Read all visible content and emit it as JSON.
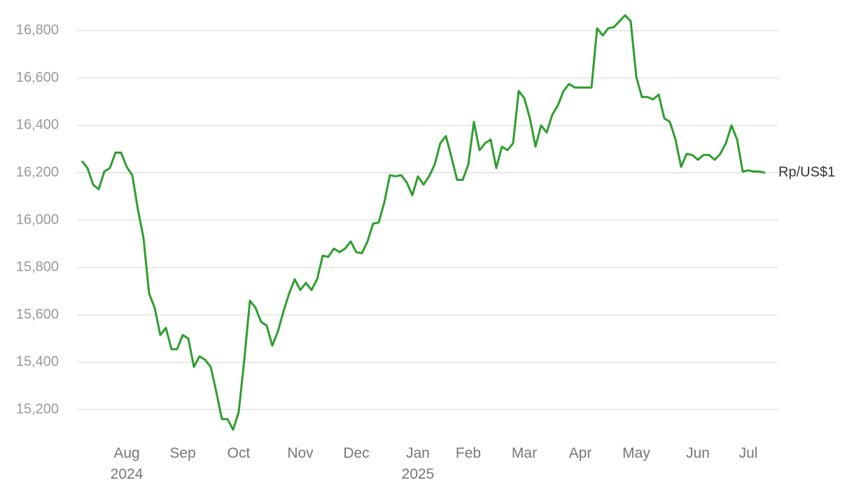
{
  "chart_data": {
    "type": "line",
    "categories": [
      null,
      null,
      null,
      null,
      null,
      null,
      null,
      null,
      "Aug 2024",
      null,
      null,
      null,
      null,
      null,
      null,
      null,
      null,
      null,
      "Sep",
      null,
      null,
      null,
      null,
      null,
      null,
      null,
      null,
      null,
      "Oct",
      null,
      null,
      null,
      null,
      null,
      null,
      null,
      null,
      null,
      null,
      "Nov",
      null,
      null,
      null,
      null,
      null,
      null,
      null,
      null,
      null,
      "Dec",
      null,
      null,
      null,
      null,
      null,
      null,
      null,
      null,
      null,
      null,
      "Jan 2025",
      null,
      null,
      null,
      null,
      null,
      null,
      null,
      null,
      "Feb",
      null,
      null,
      null,
      null,
      null,
      null,
      null,
      null,
      null,
      "Mar",
      null,
      null,
      null,
      null,
      null,
      null,
      null,
      null,
      null,
      "Apr",
      null,
      null,
      null,
      null,
      null,
      null,
      null,
      null,
      null,
      "May",
      null,
      null,
      null,
      null,
      null,
      null,
      null,
      null,
      null,
      null,
      "Jun",
      null,
      null,
      null,
      null,
      null,
      null,
      null,
      null,
      "Jul",
      null,
      null,
      null
    ],
    "series": [
      {
        "name": "Rp/US$1",
        "color": "#2e9e2e",
        "values": [
          16250,
          16220,
          16150,
          16130,
          16205,
          16220,
          16285,
          16285,
          16225,
          16190,
          16045,
          15925,
          15690,
          15630,
          15515,
          15545,
          15455,
          15455,
          15515,
          15500,
          15380,
          15425,
          15410,
          15380,
          15275,
          15160,
          15160,
          15115,
          15190,
          15410,
          15660,
          15630,
          15570,
          15555,
          15470,
          15530,
          15615,
          15690,
          15750,
          15705,
          15735,
          15705,
          15750,
          15850,
          15845,
          15880,
          15865,
          15880,
          15910,
          15865,
          15860,
          15910,
          15985,
          15990,
          16075,
          16190,
          16185,
          16190,
          16160,
          16105,
          16185,
          16150,
          16185,
          16235,
          16325,
          16355,
          16265,
          16170,
          16170,
          16235,
          16415,
          16295,
          16325,
          16340,
          16220,
          16310,
          16295,
          16325,
          16545,
          16515,
          16430,
          16310,
          16400,
          16370,
          16445,
          16485,
          16545,
          16575,
          16560,
          16560,
          16560,
          16560,
          16810,
          16780,
          16810,
          16815,
          16840,
          16865,
          16840,
          16605,
          16520,
          16520,
          16510,
          16530,
          16430,
          16415,
          16340,
          16225,
          16280,
          16275,
          16255,
          16275,
          16275,
          16255,
          16280,
          16325,
          16400,
          16340,
          16205,
          16210,
          16205,
          16205,
          16200
        ]
      }
    ],
    "ylim": [
      15100,
      16900
    ],
    "yticks": [
      {
        "value": 15200,
        "label": "15,200"
      },
      {
        "value": 15400,
        "label": "15,400"
      },
      {
        "value": 15600,
        "label": "15,600"
      },
      {
        "value": 15800,
        "label": "15,800"
      },
      {
        "value": 16000,
        "label": "16,000"
      },
      {
        "value": 16200,
        "label": "16,200"
      },
      {
        "value": 16400,
        "label": "16,400"
      },
      {
        "value": 16600,
        "label": "16,600"
      },
      {
        "value": 16800,
        "label": "16,800"
      }
    ],
    "grid": true
  }
}
